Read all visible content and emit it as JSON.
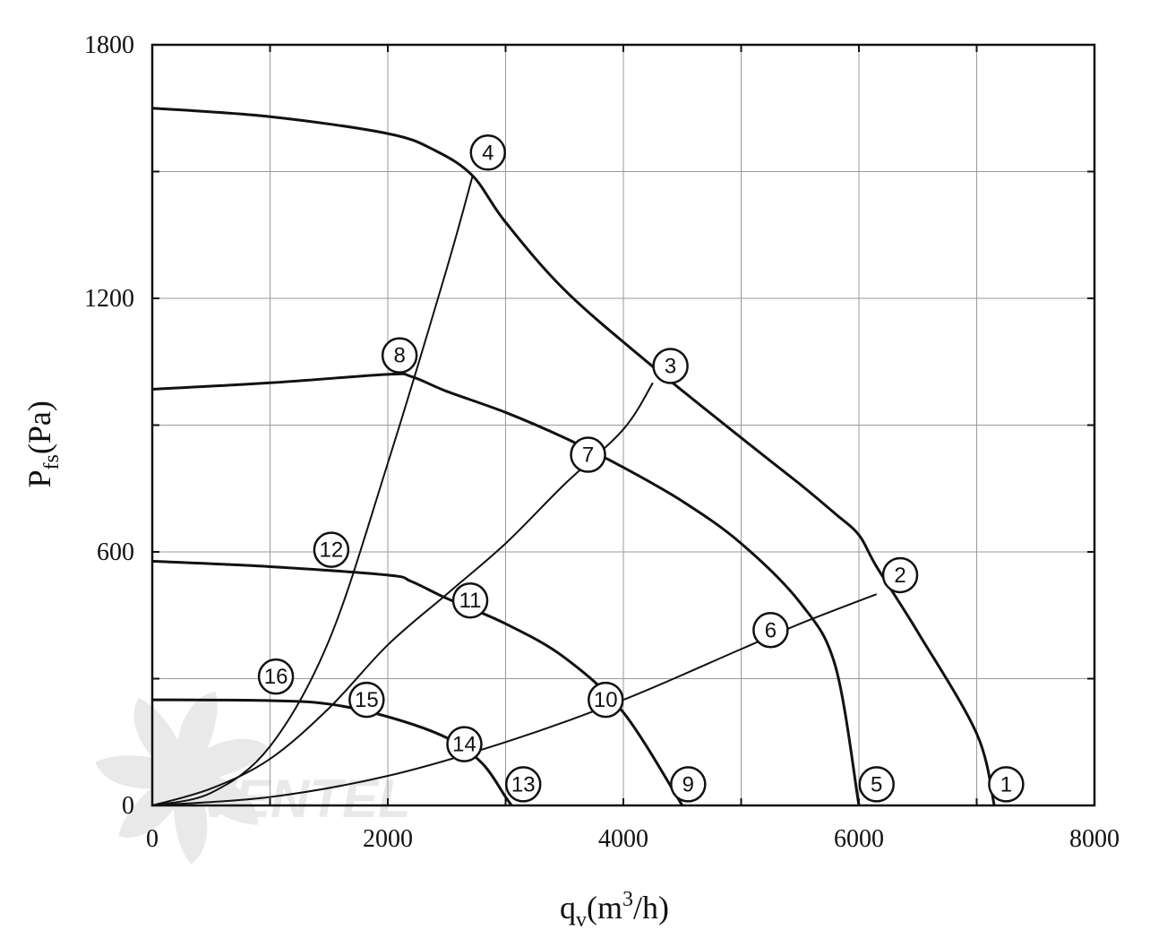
{
  "chart_data": {
    "type": "line",
    "xlabel": {
      "main": "q",
      "sub": "v",
      "unit_open": "(m",
      "sup": "3",
      "unit_close": "/h)"
    },
    "ylabel": {
      "main": "P",
      "sub": "fs",
      "unit": "(Pa)"
    },
    "xlim": [
      0,
      8000
    ],
    "ylim": [
      0,
      1800
    ],
    "xticks": [
      "0",
      "2000",
      "4000",
      "6000",
      "8000"
    ],
    "yticks": [
      "0",
      "600",
      "1200",
      "1800"
    ],
    "grid": true,
    "fan_curves": [
      {
        "label": "1",
        "points": [
          [
            0,
            1650
          ],
          [
            1000,
            1630
          ],
          [
            2000,
            1590
          ],
          [
            2400,
            1550
          ],
          [
            2720,
            1490
          ],
          [
            3000,
            1380
          ],
          [
            3500,
            1220
          ],
          [
            4200,
            1050
          ],
          [
            5000,
            870
          ],
          [
            5500,
            760
          ],
          [
            5800,
            690
          ],
          [
            6000,
            640
          ],
          [
            6150,
            565
          ],
          [
            6500,
            410
          ],
          [
            7000,
            170
          ],
          [
            7150,
            0
          ]
        ]
      },
      {
        "label": "5",
        "points": [
          [
            0,
            985
          ],
          [
            1000,
            1000
          ],
          [
            2000,
            1020
          ],
          [
            2200,
            1015
          ],
          [
            2500,
            980
          ],
          [
            3000,
            930
          ],
          [
            3500,
            870
          ],
          [
            4000,
            800
          ],
          [
            4500,
            720
          ],
          [
            5000,
            620
          ],
          [
            5500,
            480
          ],
          [
            5800,
            330
          ],
          [
            6000,
            0
          ]
        ]
      },
      {
        "label": "9",
        "points": [
          [
            0,
            578
          ],
          [
            1000,
            565
          ],
          [
            2000,
            545
          ],
          [
            2200,
            530
          ],
          [
            2500,
            490
          ],
          [
            3000,
            430
          ],
          [
            3500,
            350
          ],
          [
            4000,
            220
          ],
          [
            4500,
            0
          ]
        ]
      },
      {
        "label": "13",
        "points": [
          [
            0,
            250
          ],
          [
            1000,
            248
          ],
          [
            1500,
            240
          ],
          [
            2000,
            210
          ],
          [
            2500,
            160
          ],
          [
            2800,
            100
          ],
          [
            3000,
            20
          ],
          [
            3050,
            0
          ]
        ]
      }
    ],
    "system_curves": [
      {
        "label": "4",
        "points": [
          [
            0,
            0
          ],
          [
            500,
            30
          ],
          [
            1000,
            140
          ],
          [
            1500,
            390
          ],
          [
            2000,
            810
          ],
          [
            2500,
            1270
          ],
          [
            2720,
            1490
          ]
        ]
      },
      {
        "label": "3",
        "points": [
          [
            0,
            0
          ],
          [
            500,
            40
          ],
          [
            1000,
            110
          ],
          [
            1500,
            230
          ],
          [
            2000,
            380
          ],
          [
            2500,
            500
          ],
          [
            3000,
            620
          ],
          [
            3500,
            760
          ],
          [
            4000,
            890
          ],
          [
            4250,
            1000
          ]
        ]
      },
      {
        "label": "2",
        "points": [
          [
            0,
            0
          ],
          [
            1000,
            20
          ],
          [
            2000,
            70
          ],
          [
            3000,
            150
          ],
          [
            4000,
            250
          ],
          [
            5000,
            370
          ],
          [
            5500,
            430
          ],
          [
            6150,
            500
          ]
        ]
      }
    ],
    "markers": [
      {
        "label": "1",
        "x": 7250,
        "y": 50
      },
      {
        "label": "2",
        "x": 6350,
        "y": 545
      },
      {
        "label": "3",
        "x": 4400,
        "y": 1040
      },
      {
        "label": "4",
        "x": 2850,
        "y": 1545
      },
      {
        "label": "5",
        "x": 6150,
        "y": 50
      },
      {
        "label": "6",
        "x": 5250,
        "y": 415
      },
      {
        "label": "7",
        "x": 3700,
        "y": 830
      },
      {
        "label": "8",
        "x": 2100,
        "y": 1065
      },
      {
        "label": "9",
        "x": 4550,
        "y": 50
      },
      {
        "label": "10",
        "x": 3850,
        "y": 250
      },
      {
        "label": "11",
        "x": 2700,
        "y": 485
      },
      {
        "label": "12",
        "x": 1520,
        "y": 605
      },
      {
        "label": "13",
        "x": 3150,
        "y": 50
      },
      {
        "label": "14",
        "x": 2650,
        "y": 145
      },
      {
        "label": "15",
        "x": 1820,
        "y": 250
      },
      {
        "label": "16",
        "x": 1050,
        "y": 305
      }
    ]
  },
  "watermark": {
    "text": "VENTEL",
    "color": "#e9e9e9"
  }
}
